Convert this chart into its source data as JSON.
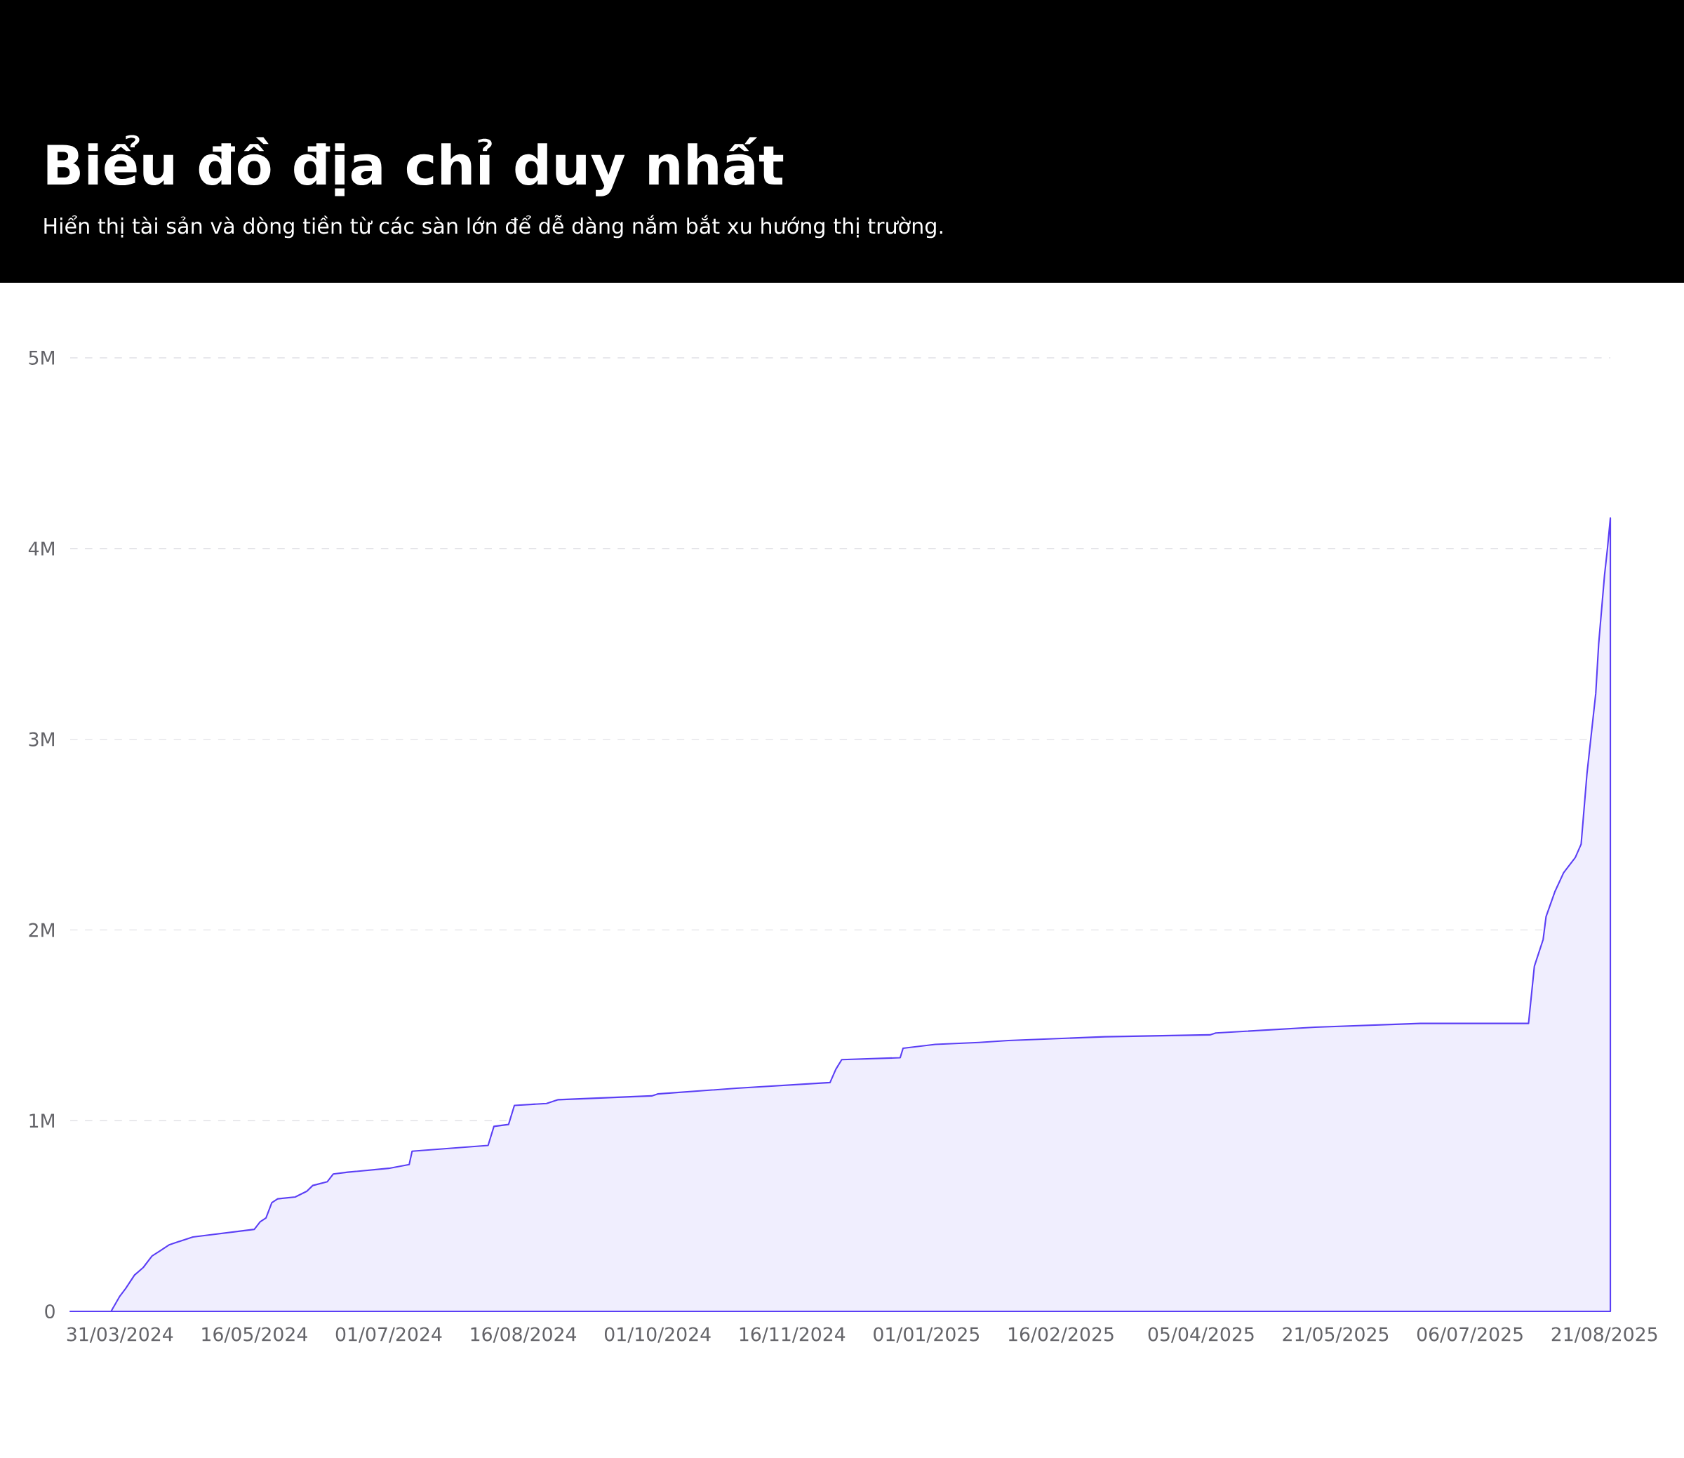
{
  "chart_data": {
    "type": "area",
    "title": "Biểu đồ địa chỉ duy nhất",
    "subtitle": "Hiển thị tài sản và dòng tiền từ các sàn lớn để dễ dàng nắm bắt xu hướng thị trường.",
    "x": [
      "2024-03-14",
      "2024-03-28",
      "2024-03-31",
      "2024-04-02",
      "2024-04-05",
      "2024-04-08",
      "2024-04-11",
      "2024-04-14",
      "2024-04-17",
      "2024-04-25",
      "2024-05-16",
      "2024-05-18",
      "2024-05-20",
      "2024-05-22",
      "2024-05-24",
      "2024-05-30",
      "2024-06-03",
      "2024-06-05",
      "2024-06-10",
      "2024-06-12",
      "2024-06-17",
      "2024-07-01",
      "2024-07-08",
      "2024-07-09",
      "2024-08-04",
      "2024-08-06",
      "2024-08-11",
      "2024-08-13",
      "2024-08-24",
      "2024-08-28",
      "2024-09-29",
      "2024-10-01",
      "2024-10-28",
      "2024-11-29",
      "2024-12-01",
      "2024-12-03",
      "2024-12-23",
      "2024-12-24",
      "2025-01-04",
      "2025-01-19",
      "2025-01-29",
      "2025-03-03",
      "2025-04-08",
      "2025-04-10",
      "2025-05-14",
      "2025-06-19",
      "2025-07-26",
      "2025-07-28",
      "2025-07-31",
      "2025-08-01",
      "2025-08-04",
      "2025-08-07",
      "2025-08-11",
      "2025-08-13",
      "2025-08-15",
      "2025-08-18",
      "2025-08-19",
      "2025-08-21",
      "2025-08-22",
      "2025-08-23"
    ],
    "series": [
      {
        "color": "#5b3ff5",
        "values": [
          0,
          0,
          80000,
          120000,
          190000,
          230000,
          290000,
          320000,
          350000,
          390000,
          430000,
          470000,
          490000,
          570000,
          590000,
          600000,
          630000,
          660000,
          680000,
          720000,
          730000,
          750000,
          770000,
          840000,
          870000,
          970000,
          980000,
          1080000,
          1090000,
          1110000,
          1130000,
          1140000,
          1170000,
          1200000,
          1270000,
          1320000,
          1330000,
          1380000,
          1400000,
          1410000,
          1420000,
          1440000,
          1450000,
          1460000,
          1490000,
          1510000,
          1510000,
          1810000,
          1950000,
          2070000,
          2200000,
          2300000,
          2380000,
          2450000,
          2820000,
          3240000,
          3500000,
          3860000,
          4000000,
          4160000
        ]
      }
    ],
    "xlim": [
      "2024-03-14",
      "2025-08-23"
    ],
    "xticks": [
      {
        "value": "2024-03-31",
        "label": "31/03/2024"
      },
      {
        "value": "2024-05-16",
        "label": "16/05/2024"
      },
      {
        "value": "2024-07-01",
        "label": "01/07/2024"
      },
      {
        "value": "2024-08-16",
        "label": "16/08/2024"
      },
      {
        "value": "2024-10-01",
        "label": "01/10/2024"
      },
      {
        "value": "2024-11-16",
        "label": "16/11/2024"
      },
      {
        "value": "2025-01-01",
        "label": "01/01/2025"
      },
      {
        "value": "2025-02-16",
        "label": "16/02/2025"
      },
      {
        "value": "2025-04-05",
        "label": "05/04/2025"
      },
      {
        "value": "2025-05-21",
        "label": "21/05/2025"
      },
      {
        "value": "2025-07-06",
        "label": "06/07/2025"
      },
      {
        "value": "2025-08-21",
        "label": "21/08/2025"
      }
    ],
    "ylim": [
      0,
      5000000
    ],
    "yticks": [
      0,
      {
        "value": 1000000,
        "label": "1M"
      },
      {
        "value": 2000000,
        "label": "2M"
      },
      {
        "value": 3000000,
        "label": "3M"
      },
      {
        "value": 4000000,
        "label": "4M"
      },
      {
        "value": 5000000,
        "label": "5M"
      }
    ],
    "grid": "y"
  }
}
